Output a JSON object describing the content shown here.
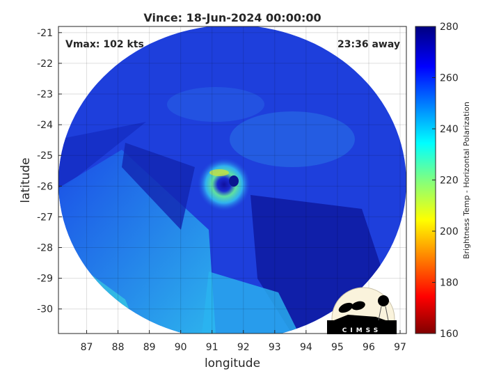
{
  "chart_data": {
    "type": "heatmap",
    "title": "Vince: 18-Jun-2024 00:00:00",
    "xlabel": "longitude",
    "ylabel": "latitude",
    "xlim": [
      86.1,
      97.2
    ],
    "ylim": [
      -30.8,
      -20.8
    ],
    "xticks": [
      "87",
      "88",
      "89",
      "90",
      "91",
      "92",
      "93",
      "94",
      "95",
      "96",
      "97"
    ],
    "yticks": [
      "-21",
      "-22",
      "-23",
      "-24",
      "-25",
      "-26",
      "-27",
      "-28",
      "-29",
      "-30"
    ],
    "grid": true,
    "storm_center": {
      "lon": 91.6,
      "lat": -26.0
    },
    "annotations": {
      "vmax": "Vmax: 102 kts",
      "time_away": "23:36 away"
    },
    "colorbar": {
      "label": "Brightness Temp - Horizontal Polarization",
      "range": [
        160,
        280
      ],
      "ticks": [
        "160",
        "180",
        "200",
        "220",
        "240",
        "260",
        "280"
      ],
      "colormap": "jet"
    },
    "logo": "CIMSS"
  }
}
